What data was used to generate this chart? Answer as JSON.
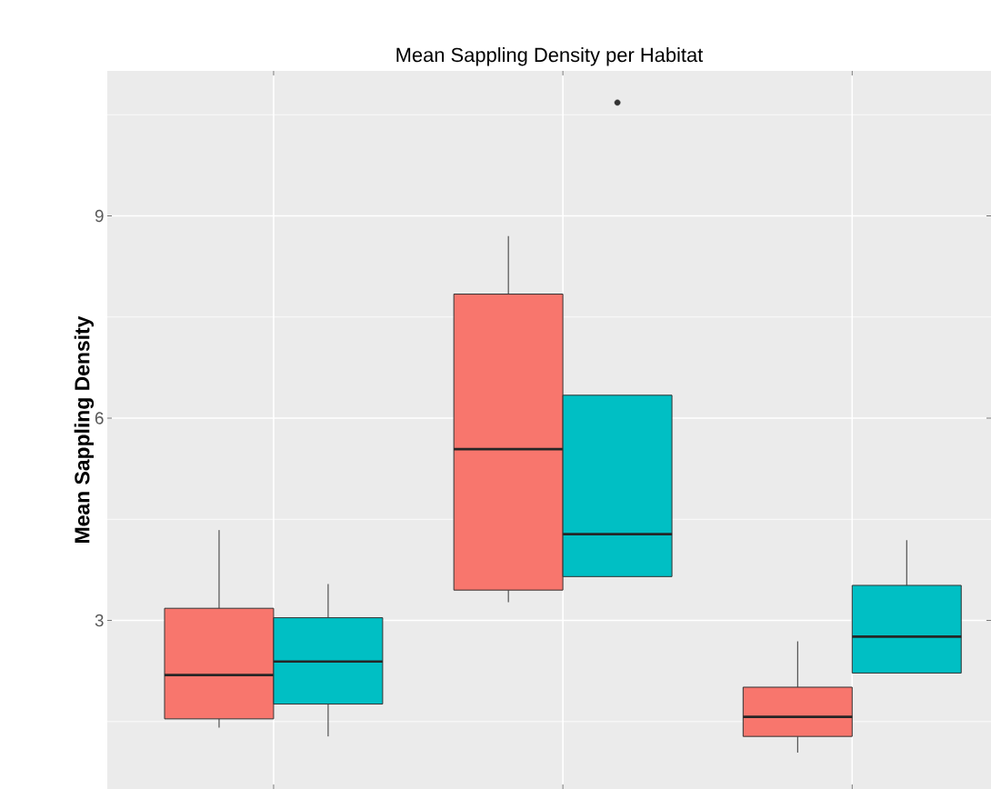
{
  "chart_data": {
    "type": "box",
    "title": "Mean Sappling Density per Habitat",
    "ylabel": "Mean Sappling Density",
    "categories": [
      null,
      null,
      null
    ],
    "series": [
      {
        "color": "#f8766d",
        "boxes": [
          {
            "low": 1.41,
            "q1": 1.54,
            "median": 2.19,
            "q3": 3.18,
            "high": 4.34
          },
          {
            "low": 3.27,
            "q1": 3.45,
            "median": 5.54,
            "q3": 7.84,
            "high": 8.7
          },
          {
            "low": 1.04,
            "q1": 1.28,
            "median": 1.57,
            "q3": 2.01,
            "high": 2.69
          }
        ]
      },
      {
        "color": "#00bfc4",
        "boxes": [
          {
            "low": 1.28,
            "q1": 1.76,
            "median": 2.39,
            "q3": 3.04,
            "high": 3.54
          },
          {
            "low": 3.65,
            "q1": 3.65,
            "median": 4.28,
            "q3": 6.34,
            "high": 6.34,
            "outliers": [
              10.68
            ]
          },
          {
            "low": 2.22,
            "q1": 2.22,
            "median": 2.76,
            "q3": 3.52,
            "high": 4.19
          }
        ]
      }
    ],
    "ylim": [
      0.5,
      11.15
    ],
    "yticks": [
      3,
      6,
      9
    ],
    "grid": true,
    "tick_labels": "y"
  }
}
